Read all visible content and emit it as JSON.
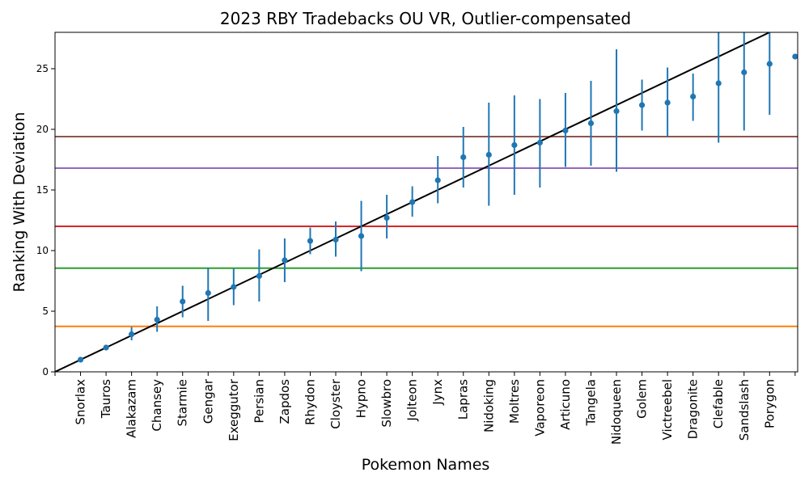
{
  "chart_data": {
    "type": "scatter",
    "title": "2023 RBY Tradebacks OU VR, Outlier-compensated",
    "xlabel": "Pokemon Names",
    "ylabel": "Ranking With Deviation",
    "ylim": [
      0,
      28
    ],
    "yticks": [
      0,
      5,
      10,
      15,
      20,
      25
    ],
    "xlim": [
      0,
      29.1
    ],
    "grid": false,
    "point_color": "#1f77b4",
    "categories": [
      "Snorlax",
      "Tauros",
      "Alakazam",
      "Chansey",
      "Starmie",
      "Gengar",
      "Exeggutor",
      "Persian",
      "Zapdos",
      "Rhydon",
      "Cloyster",
      "Hypno",
      "Slowbro",
      "Jolteon",
      "Jynx",
      "Lapras",
      "Nidoking",
      "Moltres",
      "Vaporeon",
      "Articuno",
      "Tangela",
      "Nidoqueen",
      "Golem",
      "Victreebel",
      "Dragonite",
      "Clefable",
      "Sandslash",
      "Porygon",
      ""
    ],
    "series": [
      {
        "x": [
          1,
          2,
          3,
          4,
          5,
          6,
          7,
          8,
          9,
          10,
          11,
          12,
          13,
          14,
          15,
          16,
          17,
          18,
          19,
          20,
          21,
          22,
          23,
          24,
          25,
          26,
          27,
          28,
          29
        ],
        "values": [
          1.0,
          2.0,
          3.1,
          4.3,
          5.8,
          6.5,
          7.0,
          7.9,
          9.2,
          10.8,
          10.9,
          11.2,
          12.7,
          14.0,
          15.8,
          17.7,
          17.9,
          18.7,
          18.9,
          19.9,
          20.5,
          21.5,
          22.0,
          22.2,
          22.7,
          23.8,
          24.7,
          25.4,
          26.0
        ],
        "err_low": [
          1.0,
          2.0,
          2.6,
          3.3,
          4.5,
          4.2,
          5.5,
          5.8,
          7.4,
          9.7,
          9.5,
          8.3,
          11.0,
          12.8,
          13.9,
          15.2,
          13.7,
          14.6,
          15.2,
          16.9,
          17.0,
          16.5,
          19.9,
          19.4,
          20.7,
          18.9,
          19.9,
          21.2,
          26.0
        ],
        "err_high": [
          1.0,
          2.0,
          3.7,
          5.4,
          7.1,
          8.6,
          8.5,
          10.1,
          11.0,
          11.9,
          12.4,
          14.1,
          14.6,
          15.3,
          17.8,
          20.2,
          22.2,
          22.8,
          22.5,
          23.0,
          24.0,
          26.6,
          24.1,
          25.1,
          24.6,
          28.0,
          28.0,
          28.0,
          26.0
        ]
      }
    ],
    "reference_line": {
      "from": [
        0,
        0
      ],
      "to": [
        28,
        28
      ],
      "color": "#000000"
    },
    "hlines": [
      {
        "y": 3.75,
        "color": "#ff7f0e"
      },
      {
        "y": 8.55,
        "color": "#2ca02c"
      },
      {
        "y": 12.0,
        "color": "#d62728"
      },
      {
        "y": 16.8,
        "color": "#9467bd"
      },
      {
        "y": 19.4,
        "color": "#8c564b"
      }
    ]
  }
}
